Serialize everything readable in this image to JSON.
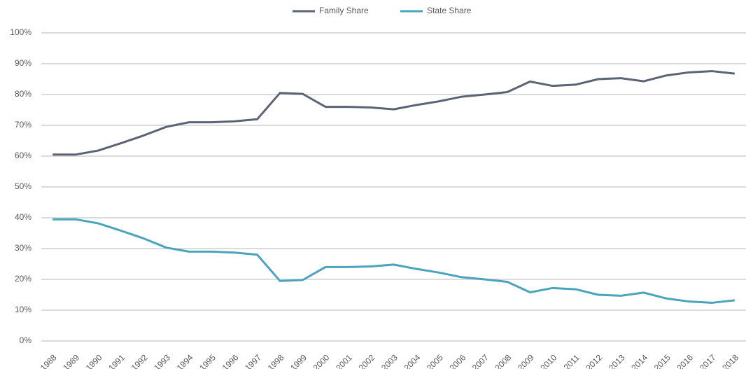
{
  "chart_data": {
    "type": "line",
    "categories": [
      "1988",
      "1989",
      "1990",
      "1991",
      "1992",
      "1993",
      "1994",
      "1995",
      "1996",
      "1997",
      "1998",
      "1999",
      "2000",
      "2001",
      "2002",
      "2003",
      "2004",
      "2005",
      "2006",
      "2007",
      "2008",
      "2009",
      "2010",
      "2011",
      "2012",
      "2013",
      "2014",
      "2015",
      "2016",
      "2017",
      "2018"
    ],
    "series": [
      {
        "name": "Family Share",
        "color": "#5a6475",
        "values": [
          60.5,
          60.5,
          61.8,
          64.2,
          66.7,
          69.5,
          71,
          71,
          71.3,
          72,
          80.5,
          80.2,
          76,
          76,
          75.8,
          75.2,
          76.6,
          77.8,
          79.3,
          80,
          80.8,
          84.2,
          82.8,
          83.2,
          85,
          85.3,
          84.3,
          86.2,
          87.2,
          87.6,
          86.8
        ]
      },
      {
        "name": "State Share",
        "color": "#4aa3bf",
        "values": [
          39.5,
          39.5,
          38.2,
          35.8,
          33.3,
          30.3,
          29,
          29,
          28.7,
          28,
          19.5,
          19.8,
          24,
          24,
          24.2,
          24.8,
          23.4,
          22.2,
          20.7,
          20,
          19.2,
          15.8,
          17.2,
          16.8,
          15,
          14.7,
          15.7,
          13.8,
          12.8,
          12.4,
          13.2
        ]
      }
    ],
    "ylim": [
      0,
      100
    ],
    "yticks": [
      {
        "value": 0,
        "label": "0%"
      },
      {
        "value": 10,
        "label": "10%"
      },
      {
        "value": 20,
        "label": "20%"
      },
      {
        "value": 30,
        "label": "30%"
      },
      {
        "value": 40,
        "label": "40%"
      },
      {
        "value": 50,
        "label": "50%"
      },
      {
        "value": 60,
        "label": "60%"
      },
      {
        "value": 70,
        "label": "70%"
      },
      {
        "value": 80,
        "label": "80%"
      },
      {
        "value": 90,
        "label": "90%"
      },
      {
        "value": 100,
        "label": "100%"
      }
    ],
    "grid": true,
    "legend": "top"
  }
}
